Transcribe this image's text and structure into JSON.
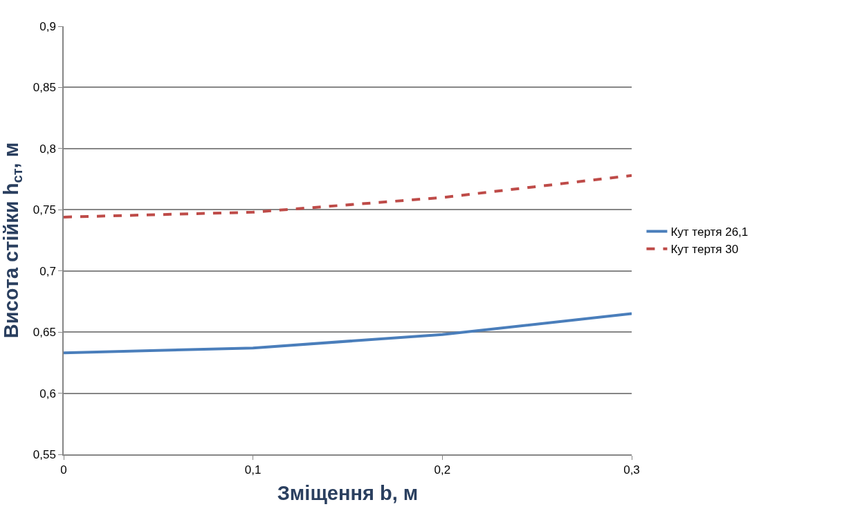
{
  "chart_data": {
    "type": "line",
    "xlabel": "Зміщення b, м",
    "ylabel": "Висота стійки h$_{ст}$, м",
    "x": [
      0,
      0.1,
      0.2,
      0.3
    ],
    "series": [
      {
        "name": "Кут тертя 26,1",
        "color": "#4a7ebb",
        "values": [
          0.633,
          0.637,
          0.648,
          0.665
        ],
        "line_style": "solid"
      },
      {
        "name": "Кут тертя 30",
        "color": "#be4b48",
        "values": [
          0.744,
          0.748,
          0.76,
          0.778
        ],
        "line_style": "dashed"
      }
    ],
    "xlim": [
      0,
      0.3
    ],
    "xticks": [
      0,
      {
        "value": 0.1,
        "label": "0,1"
      },
      {
        "value": 0.2,
        "label": "0,2"
      },
      {
        "value": 0.3,
        "label": "0,3"
      }
    ],
    "ylim": [
      0.55,
      0.9
    ],
    "yticks": [
      {
        "value": 0.55,
        "label": "0,55"
      },
      {
        "value": 0.6,
        "label": "0,6"
      },
      {
        "value": 0.65,
        "label": "0,65"
      },
      {
        "value": 0.7,
        "label": "0,7"
      },
      {
        "value": 0.75,
        "label": "0,75"
      },
      {
        "value": 0.8,
        "label": "0,8"
      },
      {
        "value": 0.85,
        "label": "0,85"
      },
      {
        "value": 0.9,
        "label": "0,9"
      }
    ],
    "grid": "y",
    "legend": "right",
    "marker": "none"
  }
}
